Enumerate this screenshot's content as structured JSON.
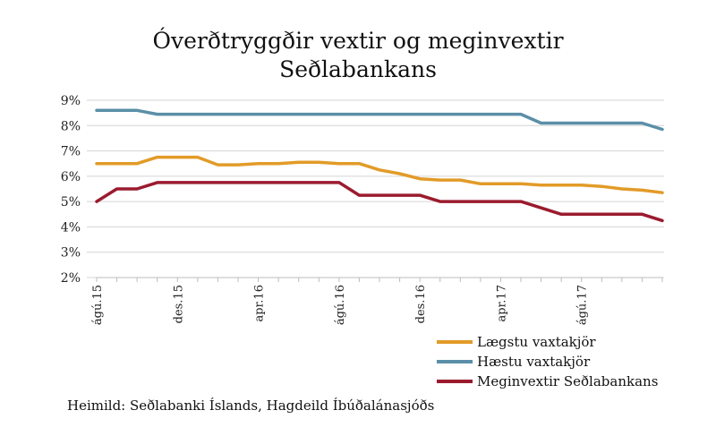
{
  "chart_data": {
    "type": "line",
    "title_lines": [
      "Óverðtryggðir vextir og meginvextir",
      "Seðlabankans"
    ],
    "source": "Heimild: Seðlabanki Íslands, Hagdeild Íbúðalánasjóðs",
    "ylim": [
      2,
      9
    ],
    "yticks": [
      "2%",
      "3%",
      "4%",
      "5%",
      "6%",
      "7%",
      "8%",
      "9%"
    ],
    "yticks_values": [
      2,
      3,
      4,
      5,
      6,
      7,
      8,
      9
    ],
    "x_count": 29,
    "xtick_labels": [
      {
        "index": 0,
        "label": "ágú.15"
      },
      {
        "index": 4,
        "label": "des.15"
      },
      {
        "index": 8,
        "label": "apr.16"
      },
      {
        "index": 12,
        "label": "ágú.16"
      },
      {
        "index": 16,
        "label": "des.16"
      },
      {
        "index": 20,
        "label": "apr.17"
      },
      {
        "index": 24,
        "label": "ágú.17"
      }
    ],
    "grid": true,
    "legend_position": "bottom-right",
    "series": [
      {
        "name": "Lægstu vaxtakjör",
        "color": "#E29B28",
        "values": [
          6.5,
          6.5,
          6.5,
          6.75,
          6.75,
          6.75,
          6.45,
          6.45,
          6.5,
          6.5,
          6.55,
          6.55,
          6.5,
          6.5,
          6.25,
          6.1,
          5.9,
          5.85,
          5.85,
          5.7,
          5.7,
          5.7,
          5.65,
          5.65,
          5.65,
          5.6,
          5.5,
          5.45,
          5.35
        ]
      },
      {
        "name": "Hæstu vaxtakjör",
        "color": "#5B8FA8",
        "values": [
          8.6,
          8.6,
          8.6,
          8.45,
          8.45,
          8.45,
          8.45,
          8.45,
          8.45,
          8.45,
          8.45,
          8.45,
          8.45,
          8.45,
          8.45,
          8.45,
          8.45,
          8.45,
          8.45,
          8.45,
          8.45,
          8.45,
          8.1,
          8.1,
          8.1,
          8.1,
          8.1,
          8.1,
          7.85
        ]
      },
      {
        "name": "Meginvextir Seðlabankans",
        "color": "#9B1B2E",
        "values": [
          5.0,
          5.5,
          5.5,
          5.75,
          5.75,
          5.75,
          5.75,
          5.75,
          5.75,
          5.75,
          5.75,
          5.75,
          5.75,
          5.25,
          5.25,
          5.25,
          5.25,
          5.0,
          5.0,
          5.0,
          5.0,
          5.0,
          4.75,
          4.5,
          4.5,
          4.5,
          4.5,
          4.5,
          4.25
        ]
      }
    ]
  }
}
